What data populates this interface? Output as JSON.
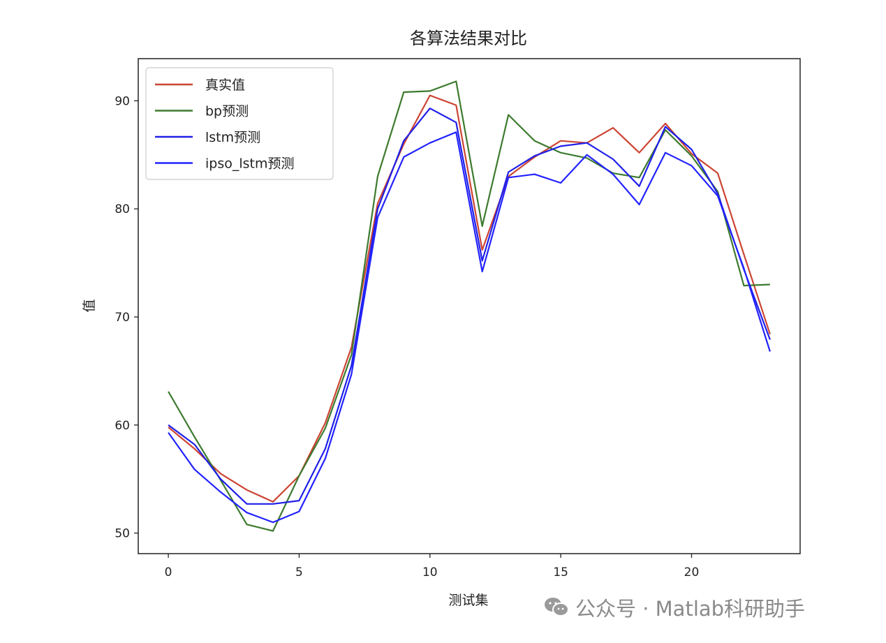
{
  "chart_data": {
    "type": "line",
    "title": "各算法结果对比",
    "xlabel": "测试集",
    "ylabel": "值",
    "xlim": [
      -1.15,
      24.15
    ],
    "ylim": [
      48.1,
      93.9
    ],
    "xticks": [
      0,
      5,
      10,
      15,
      20
    ],
    "yticks": [
      50,
      60,
      70,
      80,
      90
    ],
    "grid": false,
    "legend_position": "top-left",
    "x": [
      0,
      1,
      2,
      3,
      4,
      5,
      6,
      7,
      8,
      9,
      10,
      11,
      12,
      13,
      14,
      15,
      16,
      17,
      18,
      19,
      20,
      21,
      22,
      23
    ],
    "series": [
      {
        "name": "真实值",
        "color": "#cc4433",
        "values": [
          59.8,
          57.8,
          55.5,
          54.0,
          52.9,
          55.3,
          60.2,
          67.2,
          80.5,
          86.0,
          90.5,
          89.6,
          76.2,
          83.0,
          84.8,
          86.3,
          86.1,
          87.5,
          85.2,
          87.9,
          85.1,
          83.3,
          75.8,
          68.4
        ]
      },
      {
        "name": "bp预测",
        "color": "#3d7a2e",
        "values": [
          63.1,
          58.9,
          54.9,
          50.8,
          50.2,
          55.3,
          59.7,
          66.5,
          83.0,
          90.8,
          90.9,
          91.8,
          78.4,
          88.7,
          86.3,
          85.2,
          84.7,
          83.3,
          82.9,
          87.3,
          84.9,
          81.6,
          72.9,
          73.0
        ]
      },
      {
        "name": "lstm预测",
        "color": "#1f1fe8",
        "values": [
          60.0,
          58.2,
          55.0,
          52.7,
          52.7,
          53.0,
          57.8,
          65.5,
          80.0,
          86.3,
          89.3,
          88.0,
          75.2,
          83.4,
          84.9,
          85.8,
          86.1,
          84.6,
          82.1,
          87.6,
          85.5,
          81.4,
          74.4,
          67.9
        ]
      },
      {
        "name": "ipso_lstm预测",
        "color": "#2222ff",
        "values": [
          59.3,
          55.9,
          53.8,
          51.9,
          51.0,
          52.0,
          56.9,
          64.7,
          79.2,
          84.8,
          86.1,
          87.1,
          74.2,
          82.9,
          83.2,
          82.4,
          85.0,
          83.2,
          80.4,
          85.2,
          84.0,
          81.2,
          74.5,
          66.8
        ]
      }
    ]
  },
  "watermark": {
    "icon": "wechat-icon",
    "text": "公众号 · Matlab科研助手"
  }
}
